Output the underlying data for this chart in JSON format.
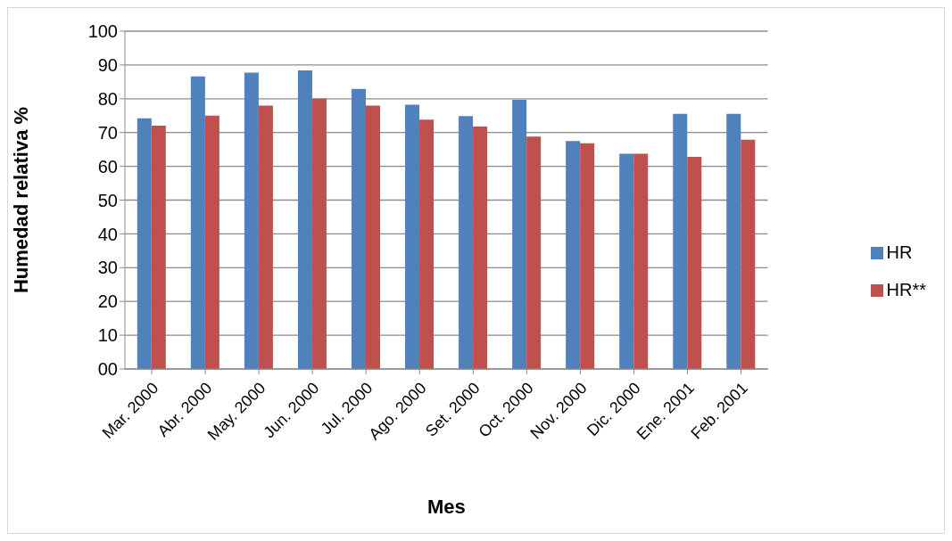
{
  "chart_data": {
    "type": "bar",
    "xlabel": "Mes",
    "ylabel": "Humedad relativa %",
    "categories": [
      "Mar. 2000",
      "Abr. 2000",
      "May. 2000",
      "Jun. 2000",
      "Jul. 2000",
      "Ago. 2000",
      "Set. 2000",
      "Oct. 2000",
      "Nov. 2000",
      "Dic. 2000",
      "Ene. 2001",
      "Feb. 2001"
    ],
    "series": [
      {
        "name": "HR",
        "color": "#4f81bd",
        "values": [
          74.2,
          86.6,
          87.7,
          88.4,
          82.9,
          78.2,
          74.9,
          79.7,
          67.5,
          63.7,
          75.5,
          75.5
        ]
      },
      {
        "name": "HR**",
        "color": "#c0504d",
        "values": [
          72,
          75,
          78,
          80,
          78,
          73.8,
          71.8,
          68.8,
          66.8,
          63.7,
          62.8,
          67.9
        ]
      }
    ],
    "ylim": [
      0,
      100
    ],
    "yticks": [
      {
        "value": 0,
        "label": "00"
      },
      10,
      20,
      30,
      40,
      50,
      60,
      70,
      80,
      90,
      100
    ],
    "grid": "y",
    "legend": "right"
  }
}
